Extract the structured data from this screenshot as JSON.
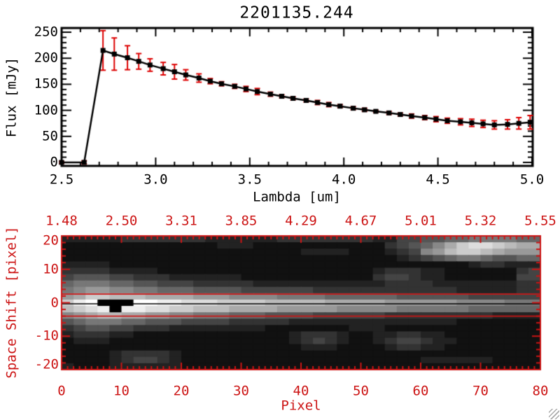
{
  "window": {
    "background": "#ffffff"
  },
  "colors": {
    "foreground": "#000000",
    "axis_red": "#cc1414",
    "error_bar_red": "#dd0000"
  },
  "decorations": {
    "resize_grip_icon": "diagonal-hatch"
  },
  "chart_data": [
    {
      "type": "line",
      "title": "2201135.244",
      "xlabel": "Lambda [um]",
      "ylabel": "Flux [mJy]",
      "xlim": [
        2.5,
        5.0
      ],
      "ylim": [
        0,
        250
      ],
      "x_major_tick_labels": [
        "2.5",
        "3.0",
        "3.5",
        "4.0",
        "4.5",
        "5.0"
      ],
      "x_major_tick_values": [
        2.5,
        3.0,
        3.5,
        4.0,
        4.5,
        5.0
      ],
      "x_minor_step": 0.1,
      "y_major_tick_labels": [
        "0",
        "50",
        "100",
        "150",
        "200",
        "250"
      ],
      "y_major_tick_values": [
        0,
        50,
        100,
        150,
        200,
        250
      ],
      "y_minor_step": 10,
      "grid": false,
      "legend": null,
      "marker": "filled-square",
      "line_color": "#000000",
      "marker_color": "#000000",
      "error_color": "#dd0000",
      "series": [
        {
          "name": "spectrum-flux",
          "x": [
            2.5,
            2.62,
            2.72,
            2.78,
            2.85,
            2.91,
            2.97,
            3.04,
            3.1,
            3.16,
            3.23,
            3.29,
            3.35,
            3.42,
            3.48,
            3.54,
            3.61,
            3.67,
            3.73,
            3.8,
            3.86,
            3.92,
            3.98,
            4.05,
            4.11,
            4.17,
            4.24,
            4.3,
            4.36,
            4.43,
            4.49,
            4.55,
            4.62,
            4.68,
            4.74,
            4.8,
            4.87,
            4.93,
            4.99
          ],
          "y": [
            0,
            0,
            215,
            208,
            201,
            194,
            187,
            180,
            174,
            168,
            162,
            156,
            151,
            146,
            141,
            136,
            131,
            127,
            123,
            119,
            115,
            111,
            108,
            104,
            101,
            98,
            95,
            92,
            89,
            86,
            83,
            80,
            78,
            76,
            74,
            72,
            73,
            75,
            77
          ],
          "yerr": [
            2,
            3,
            38,
            31,
            23,
            15,
            12,
            12,
            14,
            10,
            8,
            5,
            4,
            4,
            5,
            6,
            4,
            3,
            3,
            3,
            4,
            4,
            3,
            3,
            3,
            2,
            3,
            3,
            4,
            4,
            5,
            5,
            6,
            7,
            7,
            8,
            9,
            11,
            13
          ]
        }
      ]
    },
    {
      "type": "heatmap",
      "title": "",
      "xlabel": "Pixel",
      "ylabel": "Space Shift [pixel]",
      "xlim": [
        0,
        80
      ],
      "ylim": [
        -20,
        20
      ],
      "axis_color": "#cc1414",
      "x_major_tick_labels": [
        "0",
        "10",
        "20",
        "30",
        "40",
        "50",
        "60",
        "70",
        "80"
      ],
      "x_major_tick_values": [
        0,
        10,
        20,
        30,
        40,
        50,
        60,
        70,
        80
      ],
      "x_minor_step": 1,
      "y_major_tick_labels": [
        "20",
        "10",
        "0",
        "-10",
        "-20"
      ],
      "y_major_tick_values": [
        20,
        10,
        0,
        -10,
        -20
      ],
      "y_minor_step": 2,
      "top_axis_tick_labels": [
        "1.48",
        "2.50",
        "3.31",
        "3.85",
        "4.29",
        "4.67",
        "5.01",
        "5.32",
        "5.55"
      ],
      "overlays": {
        "center_line_y": -0.3,
        "center_line_color": "#000000",
        "aperture_lines_y": [
          2.6,
          -4.0
        ],
        "aperture_line_color": "#cc1414"
      },
      "grid_cols": 40,
      "grid_rows": 21,
      "brightness_hex_rows": [
        "2222233333332222223333333322445566777766",
        "11111111111112221111111111134568acddcbaa",
        "11111111111111111111222211123489bccba999",
        "1111111111111111111111111111234567765566",
        "2222111111111111111111111111111111233222",
        "3333222211111111111111111123332211111134",
        "4555443332222221111111111134432211111144",
        "6777665544433333222222222223333222222233",
        "7899887766655554444443333333333332222233",
        "9accbbbaaaa99988887777666666555555444444",
        "cef000ffeedddccccbbbbbaaaaa9999998888777",
        "bcde0eeddccbbbaaaa9999988888777777666666",
        "89abbaa998877766655554444443333333332222",
        "5677766555444433333222222222222221111111",
        "3455443332222222211111112221111111111111",
        "2333221111111111111233321122332211111111",
        "1222111111111111111234321123443221111111",
        "1111111111111111111122211112332211111111",
        "1111233332111111111111111111111111111111",
        "1111234432111111111111111111112222221111",
        "2111222222111111111111111111111111111111"
      ]
    }
  ]
}
